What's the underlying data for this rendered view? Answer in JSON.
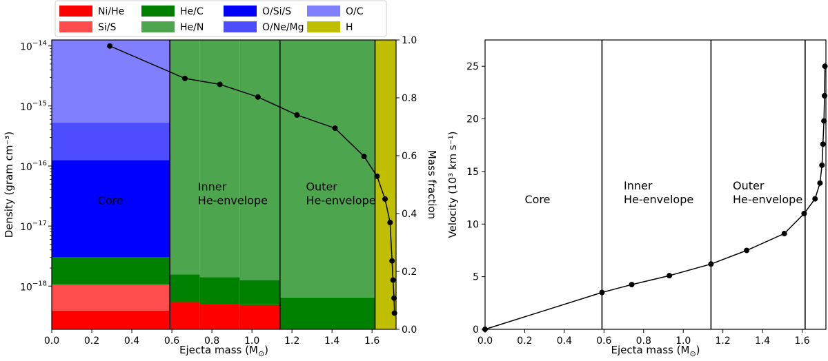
{
  "legend": {
    "items": [
      {
        "label": "Ni/He",
        "color": "#ff0000"
      },
      {
        "label": "Si/S",
        "color": "#ff4d4d"
      },
      {
        "label": "He/C",
        "color": "#008000"
      },
      {
        "label": "He/N",
        "color": "#4da64d"
      },
      {
        "label": "O/Si/S",
        "color": "#0000ff"
      },
      {
        "label": "O/Ne/Mg",
        "color": "#4d4dff"
      },
      {
        "label": "O/C",
        "color": "#8080ff"
      },
      {
        "label": "H",
        "color": "#bfbf00"
      }
    ]
  },
  "chart_data": [
    {
      "type": "stacked-area+line",
      "panel": "left",
      "xlabel": "Ejecta mass (M",
      "xlabel_sub": "⊙",
      "xlabel_end": ")",
      "ylabel_left": "Density (gram cm⁻³)",
      "ylabel_right": "Mass fraction",
      "xlim": [
        0.0,
        1.72
      ],
      "ylim_right": [
        0.0,
        1.0
      ],
      "ylim_left_log10": [
        -18.72,
        -13.9
      ],
      "xticks": [
        "0.0",
        "0.2",
        "0.4",
        "0.6",
        "0.8",
        "1.0",
        "1.2",
        "1.4",
        "1.6"
      ],
      "xtick_values": [
        0,
        0.2,
        0.4,
        0.6,
        0.8,
        1.0,
        1.2,
        1.4,
        1.6
      ],
      "yticks_right": [
        "0.0",
        "0.2",
        "0.4",
        "0.6",
        "0.8",
        "1.0"
      ],
      "ytick_values_right": [
        0,
        0.2,
        0.4,
        0.6,
        0.8,
        1.0
      ],
      "yticks_left": [
        {
          "base": "10",
          "exp": "−14",
          "log": -14
        },
        {
          "base": "10",
          "exp": "−15",
          "log": -15
        },
        {
          "base": "10",
          "exp": "−16",
          "log": -16
        },
        {
          "base": "10",
          "exp": "−17",
          "log": -17
        },
        {
          "base": "10",
          "exp": "−18",
          "log": -18
        }
      ],
      "composition": [
        {
          "x0": 0.0,
          "x1": 0.59,
          "layers": [
            0.065,
            0.09,
            0.0,
            0.095,
            0.0,
            0.335,
            0.13,
            0.285,
            0.0
          ]
        },
        {
          "x0": 0.59,
          "x1": 0.74,
          "layers": [
            0.094,
            0.0,
            0.0,
            0.096,
            0.81,
            0.0,
            0.0,
            0.0,
            0.0
          ]
        },
        {
          "x0": 0.74,
          "x1": 0.94,
          "layers": [
            0.087,
            0.0,
            0.0,
            0.093,
            0.82,
            0.0,
            0.0,
            0.0,
            0.0
          ]
        },
        {
          "x0": 0.94,
          "x1": 1.14,
          "layers": [
            0.084,
            0.0,
            0.0,
            0.086,
            0.83,
            0.0,
            0.0,
            0.0,
            0.0
          ]
        },
        {
          "x0": 1.14,
          "x1": 1.615,
          "layers": [
            0.0,
            0.0,
            0.0,
            0.11,
            0.89,
            0.0,
            0.0,
            0.0,
            0.0
          ]
        },
        {
          "x0": 1.615,
          "x1": 1.72,
          "layers": [
            0.0,
            0.0,
            0.0,
            0.0,
            0.0,
            0.0,
            0.0,
            0.0,
            1.0
          ]
        }
      ],
      "layer_colors": [
        "#ff0000",
        "#ff4d4d",
        "#66cc66",
        "#008000",
        "#4da64d",
        "#0000ff",
        "#4d4dff",
        "#8080ff",
        "#bfbf00"
      ],
      "region_boundaries": [
        0.59,
        1.14,
        1.615
      ],
      "region_labels": [
        {
          "lines": [
            "Core"
          ],
          "x": 0.23,
          "frac": 0.48
        },
        {
          "lines": [
            "Inner",
            "He-envelope"
          ],
          "x": 0.73,
          "frac": 0.48
        },
        {
          "lines": [
            "Outer",
            "He-envelope"
          ],
          "x": 1.27,
          "frac": 0.48
        }
      ],
      "density_series": {
        "x": [
          0.29,
          0.665,
          0.84,
          1.03,
          1.225,
          1.415,
          1.56,
          1.625,
          1.665,
          1.69,
          1.7,
          1.705,
          1.71,
          1.712
        ],
        "log10_density": [
          -14.0,
          -14.54,
          -14.64,
          -14.85,
          -15.15,
          -15.37,
          -15.84,
          -16.17,
          -16.55,
          -16.94,
          -17.58,
          -17.9,
          -18.2,
          -18.45
        ]
      }
    },
    {
      "type": "line",
      "panel": "right",
      "xlabel": "Ejecta mass (M",
      "xlabel_sub": "⊙",
      "xlabel_end": ")",
      "ylabel": "Velocity (10³ km s⁻¹)",
      "xlim": [
        0.0,
        1.72
      ],
      "ylim": [
        0,
        27.5
      ],
      "xticks": [
        "0.0",
        "0.2",
        "0.4",
        "0.6",
        "0.8",
        "1.0",
        "1.2",
        "1.4",
        "1.6"
      ],
      "xtick_values": [
        0,
        0.2,
        0.4,
        0.6,
        0.8,
        1.0,
        1.2,
        1.4,
        1.6
      ],
      "yticks": [
        "0",
        "5",
        "10",
        "15",
        "20",
        "25"
      ],
      "ytick_values": [
        0,
        5,
        10,
        15,
        20,
        25
      ],
      "region_boundaries": [
        0.59,
        1.14,
        1.615
      ],
      "region_labels": [
        {
          "lines": [
            "Core"
          ],
          "x": 0.2,
          "y": 13.3
        },
        {
          "lines": [
            "Inner",
            "He-envelope"
          ],
          "x": 0.7,
          "y": 13.3
        },
        {
          "lines": [
            "Outer",
            "He-envelope"
          ],
          "x": 1.25,
          "y": 13.3
        }
      ],
      "series": {
        "x": [
          0.0,
          0.59,
          0.74,
          0.93,
          1.14,
          1.32,
          1.51,
          1.61,
          1.665,
          1.69,
          1.7,
          1.705,
          1.71,
          1.713,
          1.715
        ],
        "y": [
          0.0,
          3.5,
          4.25,
          5.1,
          6.2,
          7.5,
          9.1,
          11.0,
          12.4,
          13.9,
          15.6,
          17.6,
          19.8,
          22.2,
          25.0
        ]
      }
    }
  ]
}
